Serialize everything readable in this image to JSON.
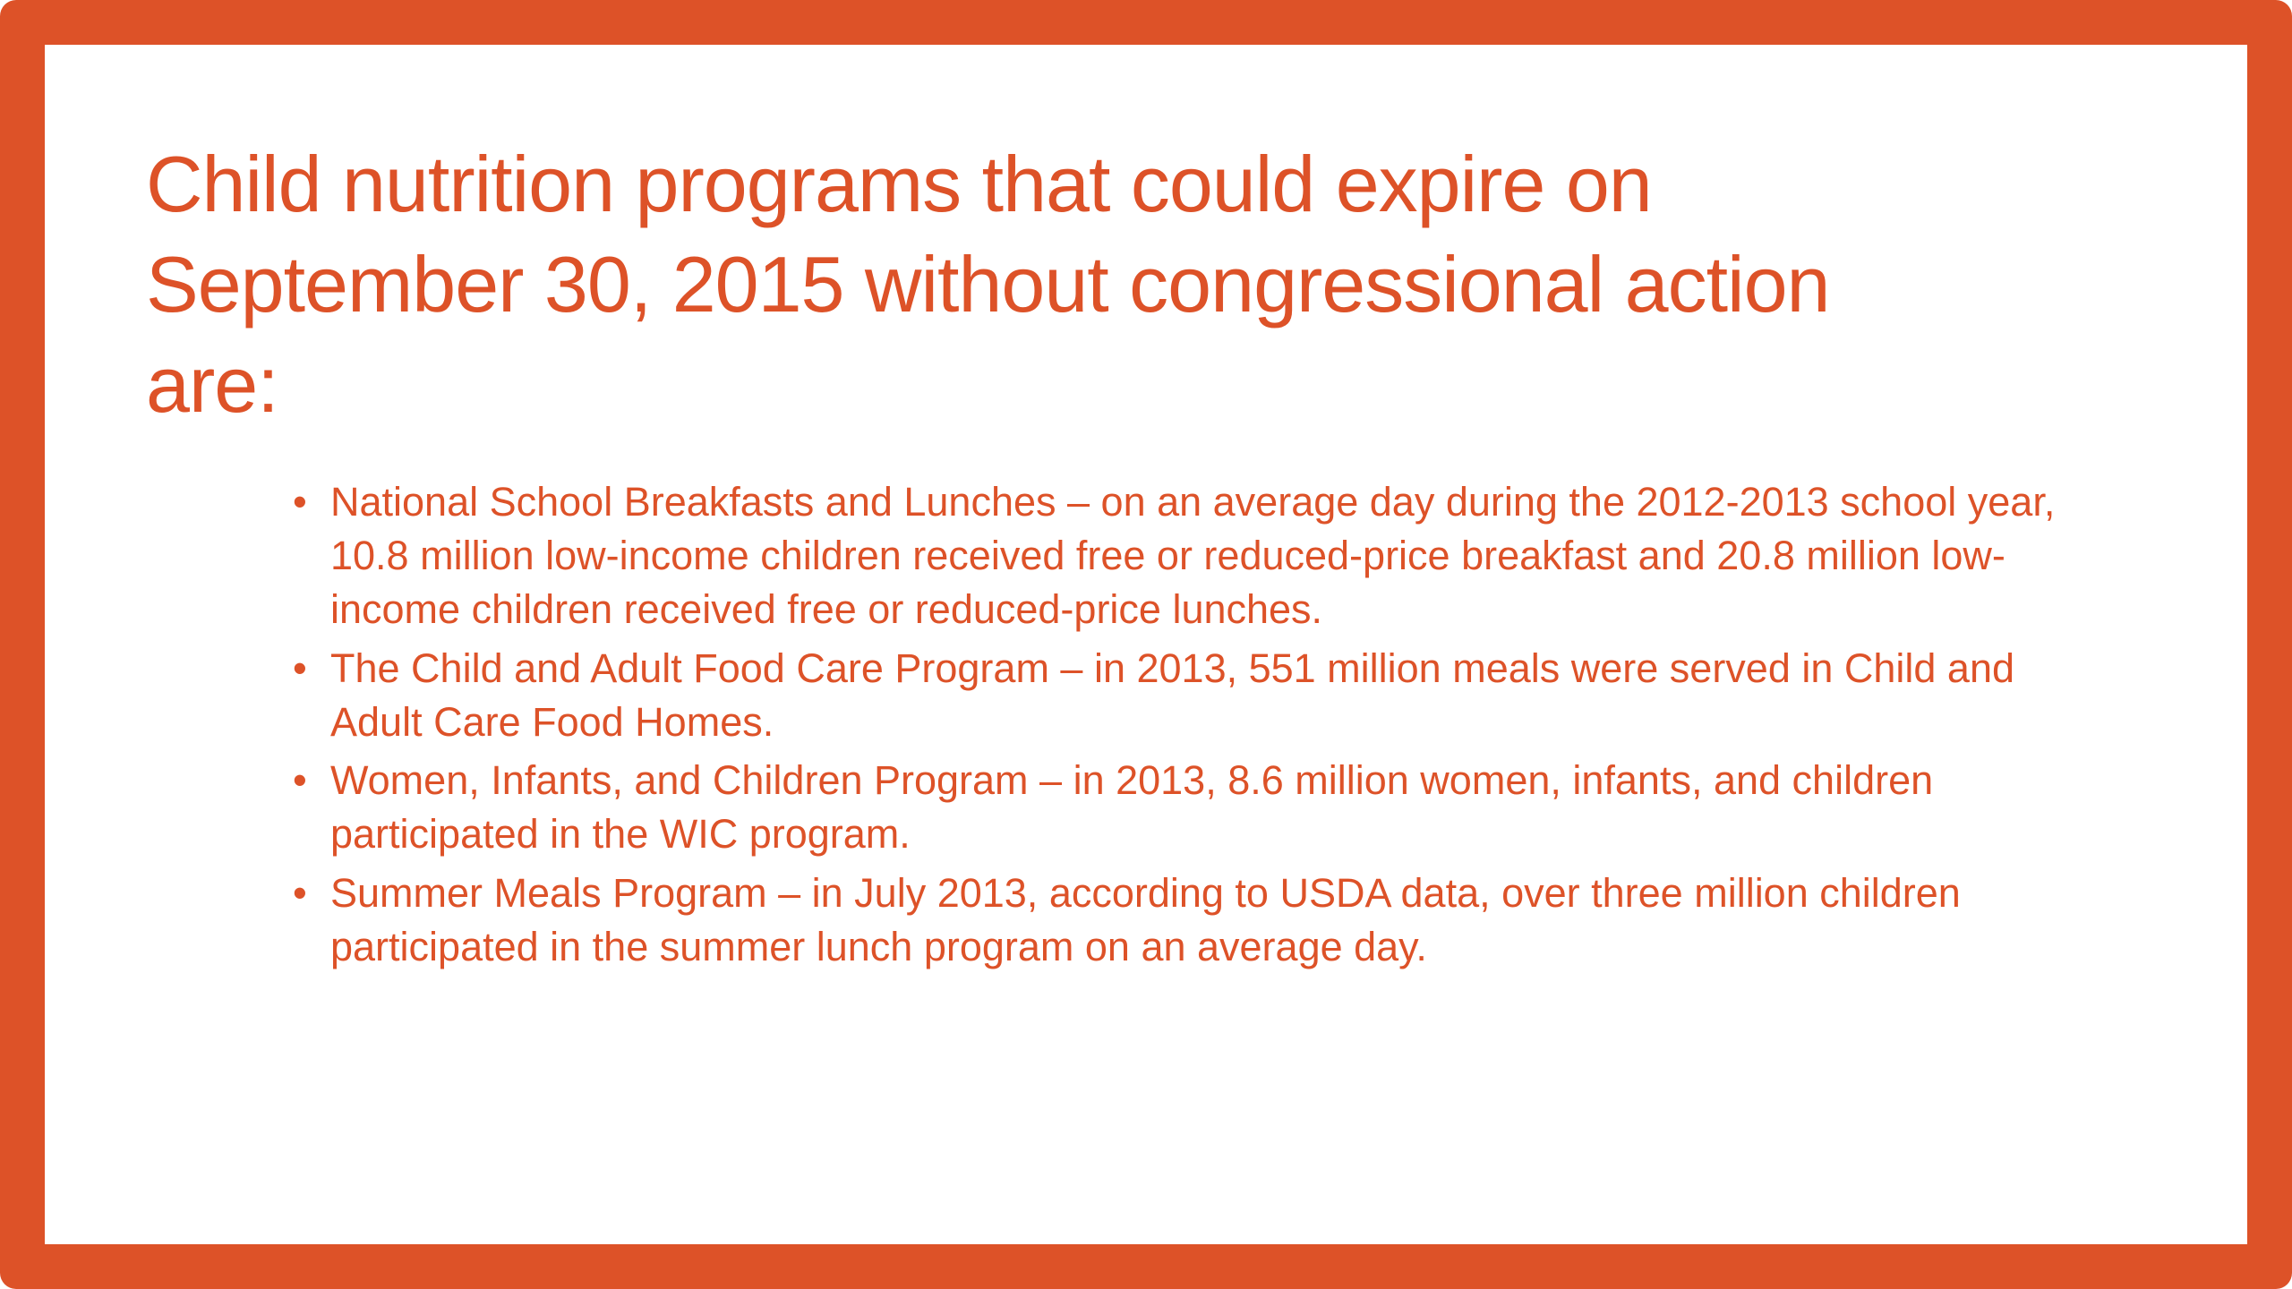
{
  "slide": {
    "colors": {
      "accent": "#DD5228",
      "background": "#FFFFFF"
    },
    "bullet_icon": "•",
    "title": "Child nutrition programs that could expire on September 30, 2015 without congressional action are:",
    "bullets": [
      "National School Breakfasts and Lunches – on an average day during the 2012-2013 school year, 10.8 million low-income children received free or reduced-price breakfast and 20.8 million low-income children received free or reduced-price lunches.",
      "The Child and Adult Food Care Program – in 2013, 551 million meals were served in Child and Adult Care Food Homes.",
      "Women, Infants, and Children Program – in 2013, 8.6 million women, infants, and children participated in the WIC program.",
      "Summer Meals Program – in July 2013, according to USDA data, over three million children participated in the summer lunch program on an average day."
    ]
  }
}
